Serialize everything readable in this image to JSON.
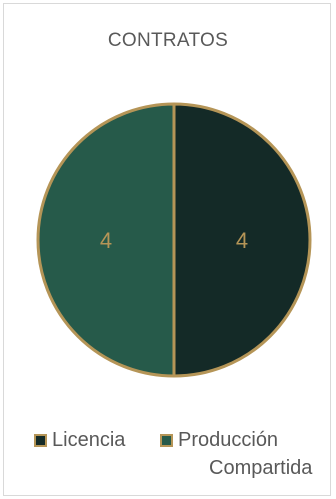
{
  "chart_data": {
    "type": "pie",
    "title": "CONTRATOS",
    "categories": [
      "Licencia",
      "Producción Compartida"
    ],
    "values": [
      4,
      4
    ],
    "colors": [
      "#142a27",
      "#265a4a"
    ],
    "border_color": "#b59557",
    "label_color": "#b59557",
    "legend_position": "bottom"
  },
  "legend": {
    "items": [
      {
        "label": "Licencia"
      },
      {
        "label_line1": "Producción",
        "label_line2": "Compartida"
      }
    ]
  }
}
